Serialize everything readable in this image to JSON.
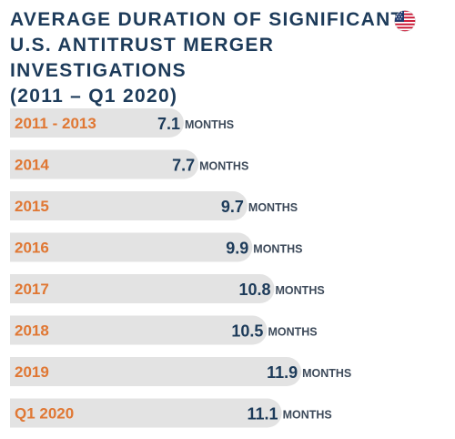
{
  "title": "AVERAGE DURATION OF SIGNIFICANT\nU.S. ANTITRUST MERGER INVESTIGATIONS\n(2011 – Q1 2020)",
  "flag_icon": "us-flag-icon",
  "colors": {
    "title": "#1d3b5a",
    "category": "#e07733",
    "value": "#1d3b5a",
    "unit": "#3d4a5a",
    "bar": "#e3e3e3"
  },
  "chart_data": {
    "type": "bar",
    "orientation": "horizontal",
    "title": "AVERAGE DURATION OF SIGNIFICANT U.S. ANTITRUST MERGER INVESTIGATIONS (2011 – Q1 2020)",
    "categories": [
      "2011 - 2013",
      "2014",
      "2015",
      "2016",
      "2017",
      "2018",
      "2019",
      "Q1 2020"
    ],
    "values": [
      7.1,
      7.7,
      9.7,
      9.9,
      10.8,
      10.5,
      11.9,
      11.1
    ],
    "value_labels": [
      "7.1",
      "7.7",
      "9.7",
      "9.9",
      "10.8",
      "10.5",
      "11.9",
      "11.1"
    ],
    "unit": "MONTHS",
    "xlabel": "",
    "ylabel": "",
    "grid": false,
    "legend": "none"
  }
}
